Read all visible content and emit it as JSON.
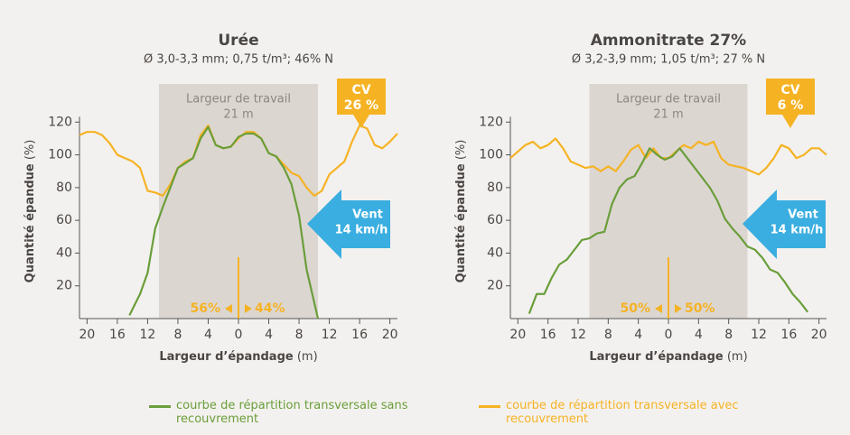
{
  "chart_data": [
    {
      "type": "line",
      "title": "Urée",
      "subtitle": "Ø 3,0-3,3 mm; 0,75 t/m³; 46% N",
      "x_label": "Largeur d’épandage",
      "x_unit": "(m)",
      "y_label": "Quantité épandue",
      "y_unit": "(%)",
      "xlim": [
        -21,
        21
      ],
      "ylim": [
        0,
        140
      ],
      "xticks": [
        {
          "value": -20,
          "label": "20"
        },
        {
          "value": -16,
          "label": "16"
        },
        {
          "value": -12,
          "label": "12"
        },
        {
          "value": -8,
          "label": "8"
        },
        {
          "value": -4,
          "label": "4"
        },
        0,
        4,
        8,
        12,
        16,
        20
      ],
      "yticks": [
        20,
        40,
        60,
        80,
        100,
        120
      ],
      "band": [
        -10.5,
        10.5
      ],
      "band_label": "Largeur de travail",
      "band_width_label": "21 m",
      "cv_label": "CV",
      "cv_value": "26 %",
      "wind_label": "Vent",
      "wind_speed": "14 km/h",
      "left_share": "56%",
      "right_share": "44%",
      "series": [
        {
          "name": "courbe de répartition transversale sans recouvrement",
          "color": "#6a9e3a",
          "x": [
            -14.4,
            -13,
            -12,
            -11,
            -10,
            -9,
            -8,
            -7,
            -6,
            -5,
            -4,
            -3,
            -2,
            -1,
            0,
            1,
            2,
            3,
            4,
            5,
            6,
            7,
            8,
            9,
            10,
            10.5
          ],
          "values": [
            2,
            15,
            28,
            55,
            68,
            80,
            92,
            95,
            98,
            110,
            117,
            106,
            104,
            105,
            111,
            113,
            113,
            110,
            101,
            99,
            92,
            82,
            63,
            30,
            10,
            0
          ]
        },
        {
          "name": "courbe de répartition transversale avec recouvrement",
          "color": "#f5b324",
          "x": [
            -21,
            -20,
            -19,
            -18,
            -17,
            -16,
            -15,
            -14,
            -13,
            -12,
            -11,
            -10,
            -9,
            -8,
            -7,
            -6,
            -5,
            -4,
            -3,
            -2,
            -1,
            0,
            1,
            2,
            3,
            4,
            5,
            6,
            7,
            8,
            9,
            10,
            11,
            12,
            13,
            14,
            15,
            16,
            17,
            18,
            19,
            20,
            21
          ],
          "values": [
            112,
            114,
            114,
            112,
            107,
            100,
            98,
            96,
            92,
            78,
            77,
            75,
            82,
            92,
            96,
            98,
            112,
            118,
            106,
            104,
            105,
            110,
            114,
            114,
            110,
            101,
            99,
            94,
            89,
            87,
            80,
            75,
            78,
            88,
            92,
            96,
            108,
            118,
            116,
            106,
            104,
            108,
            113
          ]
        }
      ]
    },
    {
      "type": "line",
      "title": "Ammonitrate 27%",
      "subtitle": "Ø 3,2-3,9 mm; 1,05 t/m³; 27 % N",
      "x_label": "Largeur d’épandage",
      "x_unit": "(m)",
      "y_label": "Quantité épandue",
      "y_unit": "(%)",
      "xlim": [
        -21,
        21
      ],
      "ylim": [
        0,
        140
      ],
      "xticks": [
        {
          "value": -20,
          "label": "20"
        },
        {
          "value": -16,
          "label": "16"
        },
        {
          "value": -12,
          "label": "12"
        },
        {
          "value": -8,
          "label": "8"
        },
        {
          "value": -4,
          "label": "4"
        },
        0,
        4,
        8,
        12,
        16,
        20
      ],
      "yticks": [
        20,
        40,
        60,
        80,
        100,
        120
      ],
      "band": [
        -10.5,
        10.5
      ],
      "band_label": "Largeur de travail",
      "band_width_label": "21 m",
      "cv_label": "CV",
      "cv_value": "6 %",
      "wind_label": "Vent",
      "wind_speed": "14 km/h",
      "left_share": "50%",
      "right_share": "50%",
      "series": [
        {
          "name": "courbe de répartition transversale sans recouvrement",
          "color": "#6a9e3a",
          "x": [
            -18.5,
            -17.5,
            -16.5,
            -15.5,
            -14.5,
            -13.5,
            -12.5,
            -11.5,
            -10.5,
            -9.5,
            -8.5,
            -7.5,
            -6.5,
            -5.5,
            -4.5,
            -3.5,
            -2.5,
            -1.5,
            -0.5,
            0.5,
            1.5,
            2.5,
            3.5,
            4.5,
            5.5,
            6.5,
            7.5,
            8.5,
            9.5,
            10.5,
            11.5,
            12.5,
            13.5,
            14.5,
            15.5,
            16.5,
            17.5,
            18.5
          ],
          "values": [
            3,
            15,
            15,
            25,
            33,
            36,
            42,
            48,
            49,
            52,
            53,
            70,
            80,
            85,
            87,
            95,
            104,
            100,
            97,
            99,
            104,
            98,
            92,
            86,
            80,
            72,
            61,
            55,
            50,
            44,
            42,
            37,
            30,
            28,
            22,
            15,
            10,
            4
          ]
        },
        {
          "name": "courbe de répartition transversale avec recouvrement",
          "color": "#f5b324",
          "x": [
            -21,
            -20,
            -19,
            -18,
            -17,
            -16,
            -15,
            -14,
            -13,
            -12,
            -11,
            -10,
            -9,
            -8,
            -7,
            -6,
            -5,
            -4,
            -3,
            -2,
            -1,
            0,
            1,
            2,
            3,
            4,
            5,
            6,
            7,
            8,
            9,
            10,
            11,
            12,
            13,
            14,
            15,
            16,
            17,
            18,
            19,
            20,
            21
          ],
          "values": [
            98,
            102,
            106,
            108,
            104,
            106,
            110,
            104,
            96,
            94,
            92,
            93,
            90,
            93,
            90,
            96,
            103,
            106,
            98,
            104,
            98,
            98,
            102,
            106,
            104,
            108,
            106,
            108,
            98,
            94,
            93,
            92,
            90,
            88,
            92,
            98,
            106,
            104,
            98,
            100,
            104,
            104,
            100
          ]
        }
      ]
    }
  ]
}
